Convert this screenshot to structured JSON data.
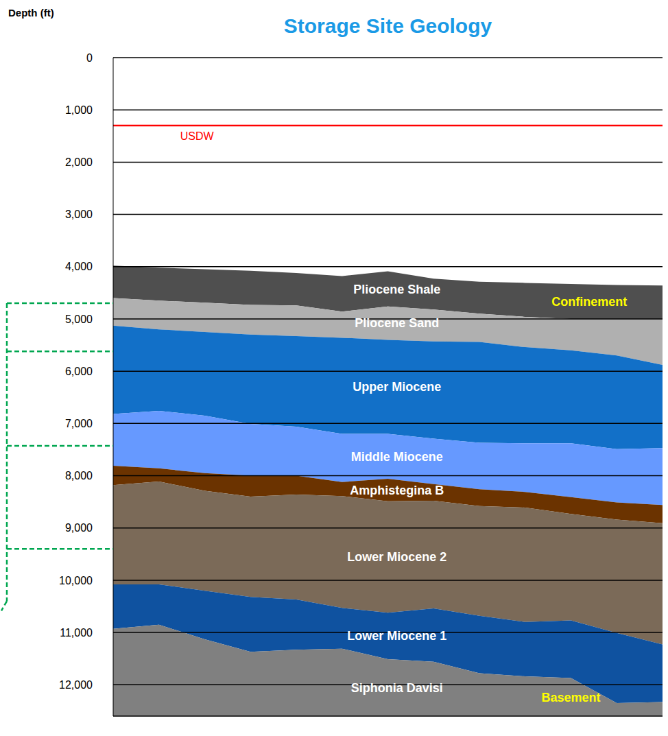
{
  "chart_data": {
    "type": "area",
    "title": "Storage Site Geology",
    "y_label": "Depth (ft)",
    "x": [
      0,
      1,
      2,
      3,
      4,
      5,
      6,
      7,
      8,
      9,
      10,
      11,
      12
    ],
    "xlim": [
      0,
      12
    ],
    "ylim": [
      0,
      12600
    ],
    "yticks": [
      0,
      {
        "value": 1000,
        "label": "1,000"
      },
      {
        "value": 2000,
        "label": "2,000"
      },
      {
        "value": 3000,
        "label": "3,000"
      },
      {
        "value": 4000,
        "label": "4,000"
      },
      {
        "value": 5000,
        "label": "5,000"
      },
      {
        "value": 6000,
        "label": "6,000"
      },
      {
        "value": 7000,
        "label": "7,000"
      },
      {
        "value": 8000,
        "label": "8,000"
      },
      {
        "value": 9000,
        "label": "9,000"
      },
      {
        "value": 10000,
        "label": "10,000"
      },
      {
        "value": 11000,
        "label": "11,000"
      },
      {
        "value": 12000,
        "label": "12,000"
      }
    ],
    "grid": true,
    "tick_labels": "y",
    "series": [
      {
        "name": "Pliocene Shale",
        "color": "#4f4f4f",
        "top": [
          3980,
          4020,
          4050,
          4080,
          4120,
          4180,
          4090,
          4230,
          4290,
          4310,
          4330,
          4350,
          4360
        ],
        "bottom": [
          4600,
          4650,
          4690,
          4730,
          4740,
          4860,
          4760,
          4820,
          4900,
          4960,
          5000,
          5000,
          5000
        ]
      },
      {
        "name": "Pliocene Sand",
        "color": "#b0b0b0",
        "top": [
          4600,
          4650,
          4690,
          4730,
          4740,
          4860,
          4760,
          4820,
          4900,
          4960,
          5000,
          5000,
          5000
        ],
        "bottom": [
          5130,
          5200,
          5250,
          5300,
          5330,
          5360,
          5400,
          5430,
          5440,
          5540,
          5600,
          5700,
          5880
        ]
      },
      {
        "name": "Upper Miocene",
        "color": "#1270c8",
        "top": [
          5130,
          5200,
          5250,
          5300,
          5330,
          5360,
          5400,
          5430,
          5440,
          5540,
          5600,
          5700,
          5880
        ],
        "bottom": [
          6820,
          6760,
          6850,
          7010,
          7060,
          7200,
          7200,
          7290,
          7370,
          7380,
          7380,
          7490,
          7470
        ]
      },
      {
        "name": "Middle Miocene",
        "color": "#6699ff",
        "top": [
          6820,
          6760,
          6850,
          7010,
          7060,
          7200,
          7200,
          7290,
          7370,
          7380,
          7380,
          7490,
          7470
        ],
        "bottom": [
          7810,
          7860,
          7950,
          8000,
          8000,
          8120,
          8060,
          8160,
          8260,
          8310,
          8410,
          8510,
          8560
        ]
      },
      {
        "name": "Amphistegina B",
        "color": "#6b3300",
        "top": [
          7810,
          7860,
          7950,
          8000,
          8000,
          8120,
          8060,
          8160,
          8260,
          8310,
          8410,
          8510,
          8560
        ],
        "bottom": [
          8180,
          8110,
          8290,
          8400,
          8360,
          8390,
          8490,
          8480,
          8580,
          8610,
          8730,
          8840,
          8910
        ]
      },
      {
        "name": "Lower Miocene 2",
        "color": "#7b6a58",
        "top": [
          8180,
          8110,
          8290,
          8400,
          8360,
          8390,
          8490,
          8480,
          8580,
          8610,
          8730,
          8840,
          8910
        ],
        "bottom": [
          10080,
          10080,
          10200,
          10320,
          10370,
          10530,
          10620,
          10540,
          10680,
          10800,
          10770,
          11010,
          11230
        ]
      },
      {
        "name": "Lower Miocene 1",
        "color": "#0f52a0",
        "top": [
          10080,
          10080,
          10200,
          10320,
          10370,
          10530,
          10620,
          10540,
          10680,
          10800,
          10770,
          11010,
          11230
        ],
        "bottom": [
          10930,
          10850,
          11130,
          11370,
          11330,
          11310,
          11510,
          11560,
          11780,
          11840,
          11870,
          12350,
          12330
        ]
      },
      {
        "name": "Siphonia Davisi",
        "color": "#808080",
        "top": [
          10930,
          10850,
          11130,
          11370,
          11330,
          11310,
          11510,
          11560,
          11780,
          11840,
          11870,
          12350,
          12330
        ],
        "bottom": [
          12600,
          12600,
          12600,
          12600,
          12600,
          12600,
          12600,
          12600,
          12600,
          12600,
          12600,
          12600,
          12600
        ]
      }
    ],
    "annotations": [
      {
        "text": "Confinement",
        "series": "Pliocene Shale"
      },
      {
        "text": "Basement",
        "series": "Siphonia Davisi"
      }
    ],
    "reference_lines": [
      {
        "label": "USDW",
        "value": 1300,
        "color": "#ff0000"
      }
    ],
    "bracket": {
      "color": "#00a650",
      "marks": [
        4700,
        5620,
        7430,
        9400
      ],
      "end": 10400
    }
  }
}
